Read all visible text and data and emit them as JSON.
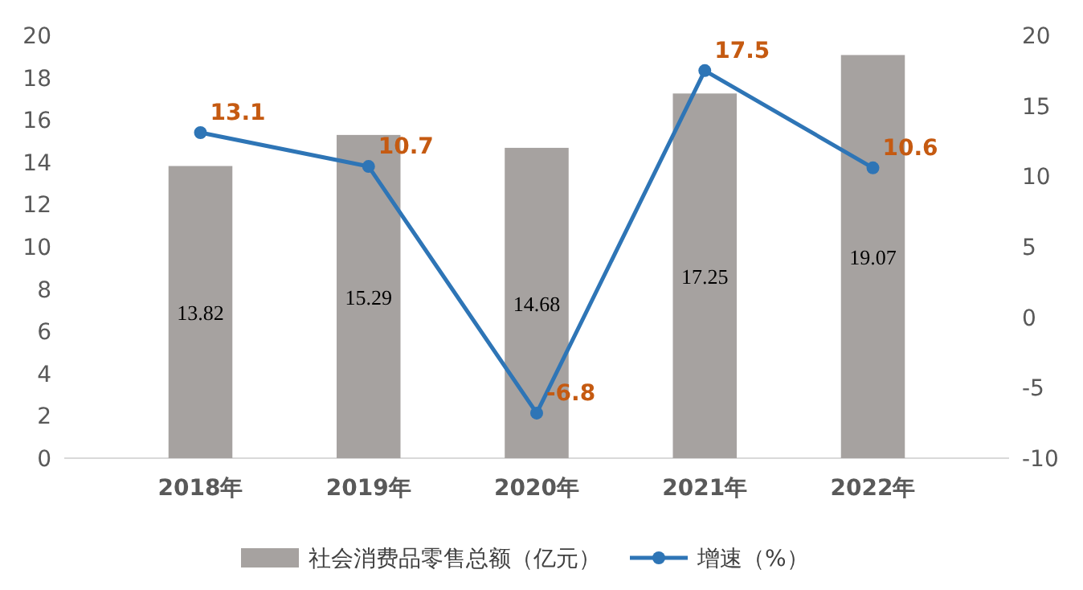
{
  "chart_data": {
    "type": "bar",
    "categories": [
      "2018年",
      "2019年",
      "2020年",
      "2021年",
      "2022年"
    ],
    "series": [
      {
        "name": "社会消费品零售总额（亿元）",
        "color": "#a6a2a0",
        "values": [
          13.82,
          15.29,
          14.68,
          17.25,
          19.07
        ]
      },
      {
        "name": "增速（%）",
        "type": "line",
        "axis": "y2",
        "color": "#2e75b6",
        "values": [
          13.1,
          10.7,
          -6.8,
          17.5,
          10.6
        ]
      }
    ],
    "ylim": [
      0,
      20
    ],
    "yticks": [
      0,
      2,
      4,
      6,
      8,
      10,
      12,
      14,
      16,
      18,
      20
    ],
    "y2lim": [
      -10,
      20
    ],
    "y2ticks": [
      -10,
      -5,
      0,
      5,
      10,
      15,
      20
    ],
    "data_labels": true,
    "legend": "bottom",
    "marker": "circle"
  }
}
